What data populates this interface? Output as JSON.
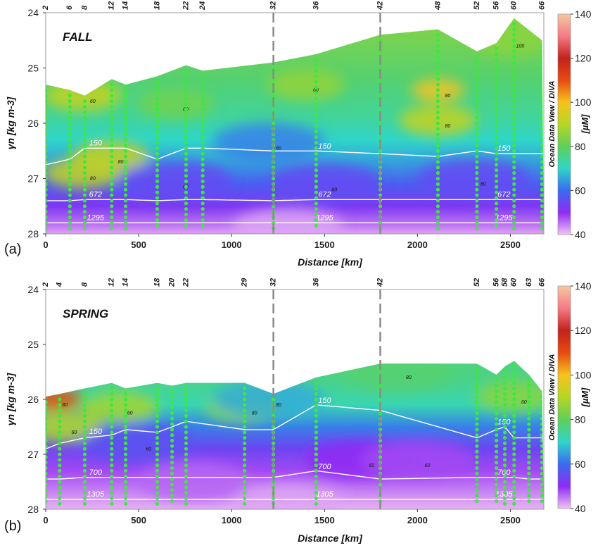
{
  "colorbar": {
    "label": "[µM]",
    "side_label": "Ocean Data View / DIVA",
    "ticks": [
      "140",
      "120",
      "100",
      "80",
      "60",
      "40"
    ],
    "min": 40,
    "max": 140,
    "colors": [
      "#f0c2f4",
      "#8f2bf3",
      "#3a6bf0",
      "#2fd6c8",
      "#5fd05a",
      "#b6d624",
      "#f6c31c",
      "#e84a13",
      "#c2231c",
      "#f47a86",
      "#f6c7a2"
    ]
  },
  "chart_data": [
    {
      "type": "heatmap",
      "panel_letter": "(a)",
      "title": "FALL",
      "xlabel": "Distance [km]",
      "ylabel": "γn [kg m-3]",
      "xlim": [
        0,
        2680
      ],
      "ylim": [
        28,
        24
      ],
      "x_ticks": [
        "0",
        "500",
        "1000",
        "1500",
        "2000",
        "2500"
      ],
      "y_ticks": [
        "24",
        "25",
        "26",
        "27",
        "28"
      ],
      "station_labels": [
        "2",
        "6",
        "8",
        "12",
        "14",
        "18",
        "22",
        "24",
        "32",
        "36",
        "42",
        "48",
        "52",
        "56",
        "60",
        "66"
      ],
      "station_distances": [
        0,
        130,
        210,
        355,
        430,
        600,
        755,
        845,
        1225,
        1455,
        1800,
        2110,
        2320,
        2425,
        2520,
        2670
      ],
      "dashed_sections_km": [
        1225,
        1800
      ],
      "surface_gamma": [
        25.3,
        25.4,
        25.5,
        25.2,
        25.3,
        25.15,
        24.95,
        25.05,
        24.9,
        24.75,
        24.4,
        24.3,
        24.7,
        24.55,
        24.1,
        24.5
      ],
      "depth_contours": [
        {
          "label": "150",
          "gamma": [
            26.75,
            26.65,
            26.45,
            26.45,
            26.45,
            26.65,
            26.45,
            26.45,
            26.5,
            26.5,
            26.55,
            26.6,
            26.5,
            26.55,
            26.55,
            26.55
          ]
        },
        {
          "label": "672",
          "gamma": [
            27.4,
            27.4,
            27.38,
            27.38,
            27.38,
            27.4,
            27.38,
            27.38,
            27.4,
            27.38,
            27.38,
            27.38,
            27.38,
            27.38,
            27.38,
            27.38
          ]
        },
        {
          "label": "1295",
          "gamma": [
            27.8,
            27.8,
            27.8,
            27.8,
            27.8,
            27.8,
            27.8,
            27.8,
            27.8,
            27.8,
            27.8,
            27.8,
            27.8,
            27.8,
            27.8,
            27.8
          ]
        }
      ],
      "concentration_contour_labels": [
        "80",
        "80",
        "60",
        "80",
        "80",
        "60",
        "100",
        "80",
        "60",
        "60",
        "60",
        "80"
      ],
      "features": [
        {
          "x_km": 2110,
          "gamma": 25.4,
          "value": 100
        },
        {
          "x_km": 2110,
          "gamma": 25.95,
          "value": 92
        },
        {
          "x_km": 200,
          "gamma": 25.5,
          "value": 92
        },
        {
          "x_km": 350,
          "gamma": 26.6,
          "value": 92
        },
        {
          "x_km": 200,
          "gamma": 26.9,
          "value": 92
        },
        {
          "x_km": 1400,
          "gamma": 25.3,
          "value": 86
        },
        {
          "x_km": 2500,
          "gamma": 24.5,
          "value": 85
        },
        {
          "x_km": 700,
          "gamma": 25.65,
          "value": 82
        },
        {
          "x_km": 1200,
          "gamma": 26.35,
          "value": 62
        },
        {
          "x_km": 700,
          "gamma": 27.05,
          "value": 55
        },
        {
          "x_km": 1500,
          "gamma": 27.1,
          "value": 55
        },
        {
          "x_km": 2300,
          "gamma": 27.0,
          "value": 55
        },
        {
          "x_km": 1300,
          "gamma": 27.9,
          "value": 42
        }
      ]
    },
    {
      "type": "heatmap",
      "panel_letter": "(b)",
      "title": "SPRING",
      "xlabel": "Distance [km]",
      "ylabel": "γn [kg m-3]",
      "xlim": [
        0,
        2680
      ],
      "ylim": [
        28,
        24
      ],
      "x_ticks": [
        "0",
        "500",
        "1000",
        "1500",
        "2000",
        "2500"
      ],
      "y_ticks": [
        "24",
        "25",
        "26",
        "27",
        "28"
      ],
      "station_labels": [
        "2",
        "4",
        "8",
        "12",
        "14",
        "18",
        "20",
        "22",
        "29",
        "32",
        "36",
        "42",
        "52",
        "56",
        "58",
        "60",
        "63",
        "66"
      ],
      "station_distances": [
        0,
        75,
        210,
        355,
        430,
        600,
        680,
        755,
        1070,
        1225,
        1455,
        1800,
        2320,
        2425,
        2470,
        2520,
        2600,
        2670
      ],
      "dashed_sections_km": [
        1225,
        1800
      ],
      "surface_gamma": [
        25.95,
        25.9,
        25.8,
        25.7,
        25.8,
        25.7,
        25.75,
        25.7,
        25.7,
        25.9,
        25.6,
        25.35,
        25.35,
        25.55,
        25.4,
        25.3,
        25.55,
        25.85
      ],
      "depth_contours": [
        {
          "label": "150",
          "gamma": [
            26.9,
            26.8,
            26.7,
            26.65,
            26.55,
            26.6,
            26.5,
            26.4,
            26.55,
            26.55,
            26.1,
            26.2,
            26.7,
            26.55,
            26.5,
            26.7,
            26.7,
            26.7
          ]
        },
        {
          "label": "700",
          "gamma": [
            27.45,
            27.45,
            27.42,
            27.42,
            27.42,
            27.42,
            27.42,
            27.42,
            27.42,
            27.42,
            27.3,
            27.45,
            27.42,
            27.42,
            27.42,
            27.42,
            27.45,
            27.45
          ]
        },
        {
          "label": "1305",
          "gamma": [
            27.82,
            27.82,
            27.82,
            27.82,
            27.82,
            27.82,
            27.82,
            27.82,
            27.82,
            27.82,
            27.82,
            27.82,
            27.82,
            27.82,
            27.82,
            27.82,
            27.82,
            27.82
          ]
        }
      ],
      "concentration_contour_labels": [
        "80",
        "60",
        "60",
        "80",
        "60",
        "80",
        "80",
        "60",
        "60",
        "60"
      ],
      "features": [
        {
          "x_km": 50,
          "gamma": 26.0,
          "value": 110
        },
        {
          "x_km": 100,
          "gamma": 26.5,
          "value": 90
        },
        {
          "x_km": 400,
          "gamma": 26.15,
          "value": 88
        },
        {
          "x_km": 1070,
          "gamma": 26.15,
          "value": 85
        },
        {
          "x_km": 2520,
          "gamma": 25.95,
          "value": 85
        },
        {
          "x_km": 1900,
          "gamma": 25.5,
          "value": 78
        },
        {
          "x_km": 1200,
          "gamma": 26.0,
          "value": 66
        },
        {
          "x_km": 500,
          "gamma": 26.8,
          "value": 56
        },
        {
          "x_km": 1700,
          "gamma": 27.1,
          "value": 50
        },
        {
          "x_km": 2000,
          "gamma": 27.1,
          "value": 48
        },
        {
          "x_km": 800,
          "gamma": 27.5,
          "value": 46
        },
        {
          "x_km": 1300,
          "gamma": 27.9,
          "value": 42
        }
      ]
    }
  ]
}
